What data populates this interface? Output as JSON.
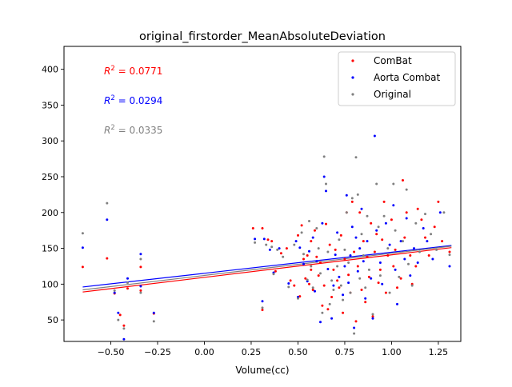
{
  "chart_data": {
    "type": "scatter",
    "title": "original_firstorder_MeanAbsoluteDeviation",
    "xlabel": "Volume(cc)",
    "ylabel": "",
    "xlim": [
      -0.75,
      1.37
    ],
    "ylim": [
      20,
      432
    ],
    "xticks": [
      -0.5,
      -0.25,
      0.0,
      0.25,
      0.5,
      0.75,
      1.0,
      1.25
    ],
    "xtick_labels": [
      "−0.50",
      "−0.25",
      "0.00",
      "0.25",
      "0.50",
      "0.75",
      "1.00",
      "1.25"
    ],
    "yticks": [
      50,
      100,
      150,
      200,
      250,
      300,
      350,
      400
    ],
    "ytick_labels": [
      "50",
      "100",
      "150",
      "200",
      "250",
      "300",
      "350",
      "400"
    ],
    "grid": false,
    "legend_position": "upper right",
    "annotations": [
      {
        "prefix": "R",
        "sup": "2",
        "suffix": " = 0.0771",
        "color": "#ff0000"
      },
      {
        "prefix": "R",
        "sup": "2",
        "suffix": " = 0.0294",
        "color": "#0000ff"
      },
      {
        "prefix": "R",
        "sup": "2",
        "suffix": " = 0.0335",
        "color": "#808080"
      }
    ],
    "series": [
      {
        "name": "ComBat",
        "color": "#ff0000",
        "fit": {
          "x": [
            -0.65,
            1.32
          ],
          "y": [
            89,
            151
          ]
        },
        "points": [
          [
            -0.65,
            124
          ],
          [
            -0.52,
            136
          ],
          [
            -0.48,
            87
          ],
          [
            -0.45,
            57
          ],
          [
            -0.43,
            42
          ],
          [
            -0.41,
            94
          ],
          [
            -0.34,
            124
          ],
          [
            -0.34,
            91
          ],
          [
            -0.27,
            59
          ],
          [
            0.26,
            178
          ],
          [
            0.31,
            178
          ],
          [
            0.31,
            64
          ],
          [
            0.34,
            162
          ],
          [
            0.36,
            160
          ],
          [
            0.38,
            118
          ],
          [
            0.41,
            143
          ],
          [
            0.44,
            150
          ],
          [
            0.46,
            105
          ],
          [
            0.48,
            98
          ],
          [
            0.5,
            168
          ],
          [
            0.51,
            83
          ],
          [
            0.52,
            182
          ],
          [
            0.53,
            135
          ],
          [
            0.54,
            108
          ],
          [
            0.55,
            140
          ],
          [
            0.56,
            100
          ],
          [
            0.57,
            160
          ],
          [
            0.57,
            120
          ],
          [
            0.58,
            92
          ],
          [
            0.59,
            175
          ],
          [
            0.6,
            138
          ],
          [
            0.61,
            112
          ],
          [
            0.62,
            130
          ],
          [
            0.63,
            70
          ],
          [
            0.64,
            98
          ],
          [
            0.65,
            184
          ],
          [
            0.66,
            65
          ],
          [
            0.67,
            155
          ],
          [
            0.68,
            82
          ],
          [
            0.69,
            120
          ],
          [
            0.7,
            148
          ],
          [
            0.71,
            105
          ],
          [
            0.72,
            95
          ],
          [
            0.73,
            168
          ],
          [
            0.74,
            60
          ],
          [
            0.75,
            135
          ],
          [
            0.76,
            200
          ],
          [
            0.77,
            113
          ],
          [
            0.78,
            88
          ],
          [
            0.79,
            215
          ],
          [
            0.8,
            145
          ],
          [
            0.81,
            48
          ],
          [
            0.82,
            125
          ],
          [
            0.83,
            200
          ],
          [
            0.84,
            92
          ],
          [
            0.85,
            160
          ],
          [
            0.86,
            75
          ],
          [
            0.87,
            138
          ],
          [
            0.88,
            110
          ],
          [
            0.89,
            185
          ],
          [
            0.9,
            55
          ],
          [
            0.91,
            145
          ],
          [
            0.92,
            170
          ],
          [
            0.93,
            102
          ],
          [
            0.94,
            120
          ],
          [
            0.95,
            162
          ],
          [
            0.96,
            215
          ],
          [
            0.97,
            88
          ],
          [
            0.98,
            140
          ],
          [
            1.0,
            190
          ],
          [
            1.01,
            125
          ],
          [
            1.02,
            148
          ],
          [
            1.03,
            95
          ],
          [
            1.05,
            108
          ],
          [
            1.06,
            245
          ],
          [
            1.07,
            165
          ],
          [
            1.08,
            200
          ],
          [
            1.1,
            140
          ],
          [
            1.11,
            100
          ],
          [
            1.13,
            125
          ],
          [
            1.14,
            205
          ],
          [
            1.16,
            190
          ],
          [
            1.18,
            165
          ],
          [
            1.2,
            140
          ],
          [
            1.23,
            180
          ],
          [
            1.25,
            215
          ],
          [
            1.27,
            160
          ],
          [
            1.31,
            145
          ]
        ]
      },
      {
        "name": "Aorta Combat",
        "color": "#0000ff",
        "fit": {
          "x": [
            -0.65,
            1.32
          ],
          "y": [
            96,
            154
          ]
        },
        "points": [
          [
            -0.65,
            151
          ],
          [
            -0.52,
            190
          ],
          [
            -0.48,
            88
          ],
          [
            -0.46,
            60
          ],
          [
            -0.43,
            23
          ],
          [
            -0.41,
            108
          ],
          [
            -0.34,
            142
          ],
          [
            -0.34,
            97
          ],
          [
            -0.27,
            60
          ],
          [
            0.27,
            163
          ],
          [
            0.31,
            76
          ],
          [
            0.32,
            163
          ],
          [
            0.35,
            148
          ],
          [
            0.37,
            116
          ],
          [
            0.4,
            150
          ],
          [
            0.45,
            101
          ],
          [
            0.49,
            160
          ],
          [
            0.5,
            82
          ],
          [
            0.51,
            151
          ],
          [
            0.53,
            128
          ],
          [
            0.55,
            104
          ],
          [
            0.56,
            146
          ],
          [
            0.58,
            165
          ],
          [
            0.59,
            90
          ],
          [
            0.6,
            132
          ],
          [
            0.62,
            47
          ],
          [
            0.63,
            185
          ],
          [
            0.64,
            250
          ],
          [
            0.65,
            230
          ],
          [
            0.66,
            121
          ],
          [
            0.68,
            52
          ],
          [
            0.69,
            98
          ],
          [
            0.7,
            141
          ],
          [
            0.71,
            172
          ],
          [
            0.72,
            110
          ],
          [
            0.74,
            85
          ],
          [
            0.75,
            125
          ],
          [
            0.76,
            224
          ],
          [
            0.77,
            102
          ],
          [
            0.78,
            140
          ],
          [
            0.79,
            180
          ],
          [
            0.8,
            39
          ],
          [
            0.81,
            165
          ],
          [
            0.82,
            118
          ],
          [
            0.83,
            150
          ],
          [
            0.84,
            205
          ],
          [
            0.85,
            132
          ],
          [
            0.86,
            80
          ],
          [
            0.87,
            160
          ],
          [
            0.89,
            108
          ],
          [
            0.9,
            52
          ],
          [
            0.91,
            307
          ],
          [
            0.92,
            175
          ],
          [
            0.94,
            130
          ],
          [
            0.95,
            100
          ],
          [
            0.97,
            185
          ],
          [
            0.99,
            155
          ],
          [
            1.01,
            210
          ],
          [
            1.02,
            120
          ],
          [
            1.03,
            72
          ],
          [
            1.05,
            160
          ],
          [
            1.07,
            135
          ],
          [
            1.08,
            192
          ],
          [
            1.1,
            112
          ],
          [
            1.12,
            150
          ],
          [
            1.14,
            130
          ],
          [
            1.17,
            178
          ],
          [
            1.19,
            160
          ],
          [
            1.22,
            135
          ],
          [
            1.26,
            200
          ],
          [
            1.31,
            125
          ]
        ]
      },
      {
        "name": "Original",
        "color": "#808080",
        "fit": {
          "x": [
            -0.65,
            1.32
          ],
          "y": [
            92,
            153
          ]
        },
        "points": [
          [
            -0.65,
            171
          ],
          [
            -0.52,
            213
          ],
          [
            -0.48,
            91
          ],
          [
            -0.46,
            50
          ],
          [
            -0.43,
            38
          ],
          [
            -0.41,
            102
          ],
          [
            -0.34,
            135
          ],
          [
            -0.34,
            88
          ],
          [
            -0.27,
            48
          ],
          [
            0.27,
            158
          ],
          [
            0.31,
            67
          ],
          [
            0.33,
            155
          ],
          [
            0.36,
            152
          ],
          [
            0.37,
            114
          ],
          [
            0.39,
            148
          ],
          [
            0.42,
            138
          ],
          [
            0.45,
            96
          ],
          [
            0.48,
            155
          ],
          [
            0.5,
            80
          ],
          [
            0.52,
            172
          ],
          [
            0.53,
            142
          ],
          [
            0.55,
            106
          ],
          [
            0.56,
            188
          ],
          [
            0.57,
            125
          ],
          [
            0.58,
            95
          ],
          [
            0.6,
            178
          ],
          [
            0.61,
            150
          ],
          [
            0.62,
            115
          ],
          [
            0.63,
            60
          ],
          [
            0.64,
            278
          ],
          [
            0.65,
            240
          ],
          [
            0.66,
            145
          ],
          [
            0.67,
            72
          ],
          [
            0.68,
            105
          ],
          [
            0.69,
            92
          ],
          [
            0.71,
            125
          ],
          [
            0.72,
            162
          ],
          [
            0.73,
            98
          ],
          [
            0.74,
            78
          ],
          [
            0.75,
            148
          ],
          [
            0.76,
            200
          ],
          [
            0.77,
            130
          ],
          [
            0.78,
            88
          ],
          [
            0.79,
            220
          ],
          [
            0.8,
            31
          ],
          [
            0.81,
            277
          ],
          [
            0.82,
            225
          ],
          [
            0.83,
            108
          ],
          [
            0.84,
            170
          ],
          [
            0.85,
            140
          ],
          [
            0.86,
            95
          ],
          [
            0.87,
            195
          ],
          [
            0.88,
            120
          ],
          [
            0.9,
            58
          ],
          [
            0.92,
            240
          ],
          [
            0.93,
            180
          ],
          [
            0.94,
            112
          ],
          [
            0.96,
            195
          ],
          [
            0.98,
            150
          ],
          [
            0.99,
            88
          ],
          [
            1.01,
            240
          ],
          [
            1.02,
            175
          ],
          [
            1.04,
            110
          ],
          [
            1.06,
            160
          ],
          [
            1.08,
            232
          ],
          [
            1.09,
            128
          ],
          [
            1.11,
            98
          ],
          [
            1.13,
            185
          ],
          [
            1.15,
            145
          ],
          [
            1.18,
            198
          ],
          [
            1.21,
            170
          ],
          [
            1.24,
            148
          ],
          [
            1.28,
            200
          ],
          [
            1.31,
            141
          ]
        ]
      }
    ]
  }
}
